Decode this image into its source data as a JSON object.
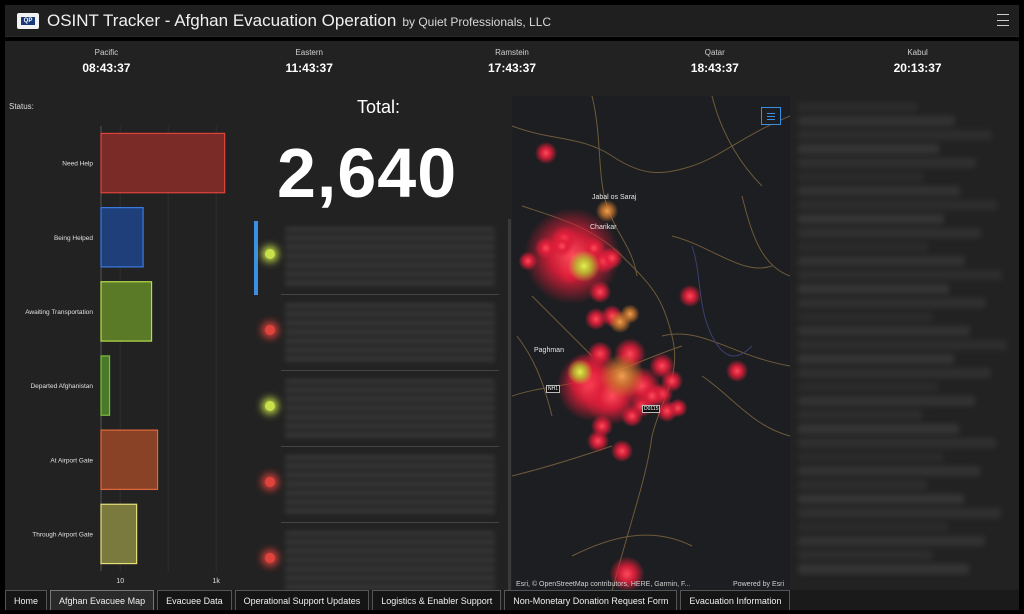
{
  "header": {
    "logo_text": "QP",
    "title": "OSINT Tracker - Afghan Evacuation Operation",
    "subtitle": "by Quiet Professionals, LLC"
  },
  "clocks": [
    {
      "city": "Pacific",
      "time": "08:43:37"
    },
    {
      "city": "Eastern",
      "time": "11:43:37"
    },
    {
      "city": "Ramstein",
      "time": "17:43:37"
    },
    {
      "city": "Qatar",
      "time": "18:43:37"
    },
    {
      "city": "Kabul",
      "time": "20:13:37"
    }
  ],
  "status": {
    "label": "Status:"
  },
  "chart_data": {
    "type": "bar",
    "orientation": "horizontal",
    "title": "",
    "xlabel": "",
    "ylabel": "",
    "x_scale": "log",
    "x_ticks": [
      "10",
      "1k"
    ],
    "categories": [
      "Need Help",
      "Being Helped",
      "Awaiting Transportation",
      "Departed Afghanistan",
      "At Airport Gate",
      "Through Airport Gate"
    ],
    "values": [
      1500,
      30,
      45,
      6,
      60,
      22
    ],
    "colors": [
      {
        "fill": "#7a2a27",
        "stroke": "#e0433c"
      },
      {
        "fill": "#1e3f7a",
        "stroke": "#3a7ae0"
      },
      {
        "fill": "#5a7a28",
        "stroke": "#b5e04a"
      },
      {
        "fill": "#4a7a28",
        "stroke": "#7ac03c"
      },
      {
        "fill": "#8a4226",
        "stroke": "#e0683c"
      },
      {
        "fill": "#7a7a3e",
        "stroke": "#e6e07a"
      }
    ],
    "grid": true
  },
  "total": {
    "label": "Total:",
    "value": "2,640"
  },
  "list": {
    "items": [
      {
        "dot_color": "#c8e04a",
        "active": true
      },
      {
        "dot_color": "#e0433c",
        "active": false
      },
      {
        "dot_color": "#c8e04a",
        "active": false
      },
      {
        "dot_color": "#e0433c",
        "active": false
      },
      {
        "dot_color": "#e0433c",
        "active": false
      }
    ]
  },
  "map": {
    "places": [
      "Jabal os Saraj",
      "Charikar",
      "Paghman"
    ],
    "road_shields": [
      "NH1",
      "D0115"
    ],
    "attribution": "Esri, © OpenStreetMap contributors, HERE, Garmin, F...",
    "powered_by": "Powered by Esri",
    "legend_icon": "list-icon"
  },
  "tabs": [
    {
      "label": "Home",
      "active": false
    },
    {
      "label": "Afghan Evacuee Map",
      "active": true
    },
    {
      "label": "Evacuee Data",
      "active": false
    },
    {
      "label": "Operational Support Updates",
      "active": false
    },
    {
      "label": "Logistics & Enabler Support",
      "active": false
    },
    {
      "label": "Non-Monetary Donation Request Form",
      "active": false
    },
    {
      "label": "Evacuation Information",
      "active": false
    }
  ]
}
